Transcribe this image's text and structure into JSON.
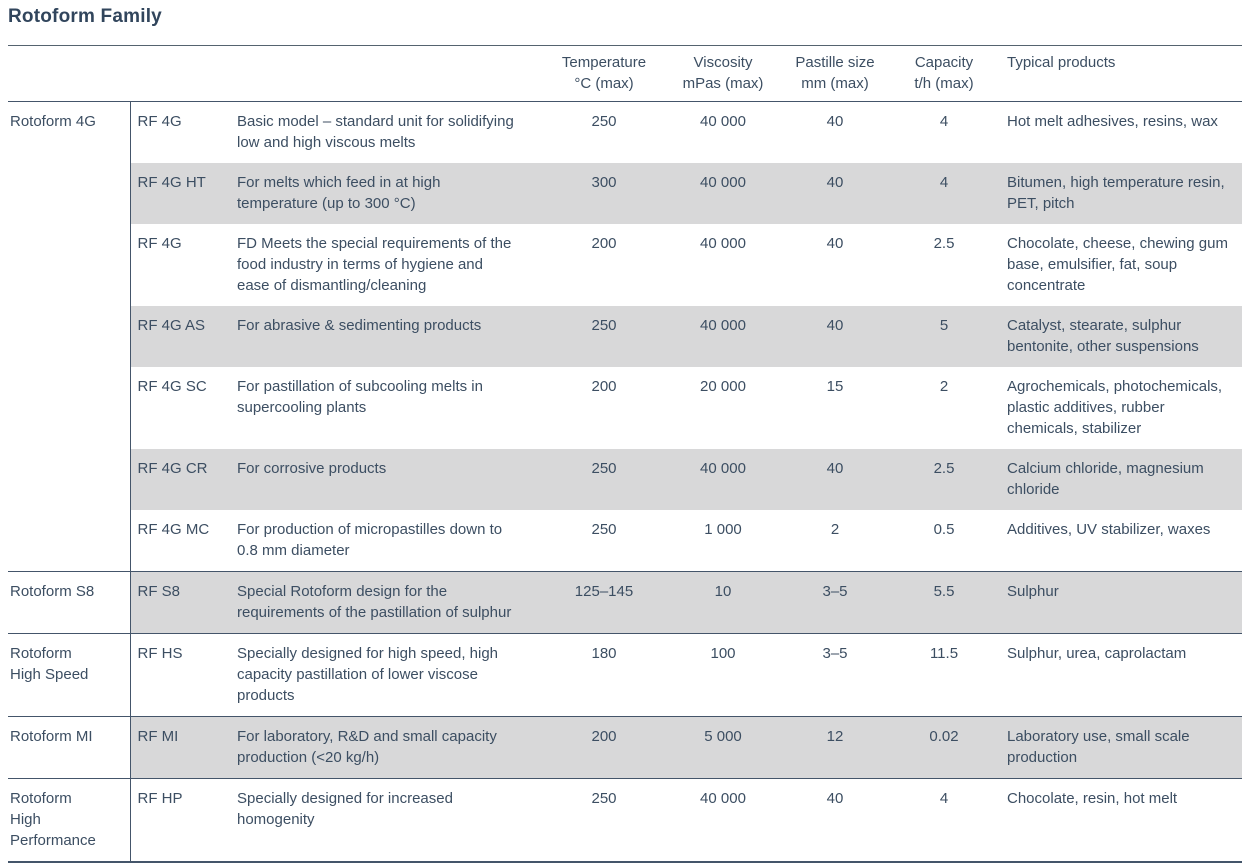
{
  "title": "Rotoform Family",
  "colors": {
    "text": "#3c4e62",
    "title": "#31455c",
    "row_shade": "#d8d8d9",
    "rule": "#44556a"
  },
  "table": {
    "headers": [
      {
        "label": "Temperature",
        "sub": "°C (max)"
      },
      {
        "label": "Viscosity",
        "sub": "mPas (max)"
      },
      {
        "label": "Pastille size",
        "sub": "mm (max)"
      },
      {
        "label": "Capacity",
        "sub": "t/h (max)"
      },
      {
        "label": "Typical products",
        "sub": ""
      }
    ],
    "groups": [
      {
        "name": "Rotoform 4G",
        "rows": [
          {
            "code": "RF 4G",
            "description": "Basic model – standard unit for solidifying low and high viscous melts",
            "temperature": "250",
            "viscosity": "40 000",
            "pastille": "40",
            "capacity": "4",
            "products": "Hot melt adhesives, resins, wax"
          },
          {
            "code": "RF 4G HT",
            "description": "For melts which feed in at high temperature (up to 300 °C)",
            "temperature": "300",
            "viscosity": "40 000",
            "pastille": "40",
            "capacity": "4",
            "products": "Bitumen, high temperature resin, PET, pitch"
          },
          {
            "code": "RF 4G",
            "description": "FD Meets the special requirements of the food industry in terms of hygiene and ease of dismantling/cleaning",
            "temperature": "200",
            "viscosity": "40 000",
            "pastille": "40",
            "capacity": "2.5",
            "products": "Chocolate, cheese, chewing gum base, emulsifier, fat, soup concentrate"
          },
          {
            "code": "RF 4G AS",
            "description": "For abrasive & sedimenting products",
            "temperature": "250",
            "viscosity": "40 000",
            "pastille": "40",
            "capacity": "5",
            "products": "Catalyst, stearate, sulphur bentonite, other suspensions"
          },
          {
            "code": "RF 4G SC",
            "description": "For pastillation of subcooling melts in supercooling plants",
            "temperature": "200",
            "viscosity": "20 000",
            "pastille": "15",
            "capacity": "2",
            "products": "Agrochemicals, photochemicals, plastic additives, rubber chemicals, stabilizer"
          },
          {
            "code": "RF 4G CR",
            "description": "For corrosive products",
            "temperature": "250",
            "viscosity": "40 000",
            "pastille": "40",
            "capacity": "2.5",
            "products": "Calcium chloride, magnesium chloride"
          },
          {
            "code": "RF 4G MC",
            "description": "For production of micropastilles down to 0.8 mm diameter",
            "temperature": "250",
            "viscosity": "1 000",
            "pastille": "2",
            "capacity": "0.5",
            "products": "Additives, UV stabilizer, waxes"
          }
        ]
      },
      {
        "name": "Rotoform S8",
        "rows": [
          {
            "code": "RF S8",
            "description": "Special Rotoform design for the requirements of the pastillation of sulphur",
            "temperature": "125–145",
            "viscosity": "10",
            "pastille": "3–5",
            "capacity": "5.5",
            "products": "Sulphur"
          }
        ]
      },
      {
        "name": "Rotoform High Speed",
        "rows": [
          {
            "code": "RF HS",
            "description": "Specially designed for high speed, high capacity pastillation of lower viscose products",
            "temperature": "180",
            "viscosity": "100",
            "pastille": "3–5",
            "capacity": "11.5",
            "products": "Sulphur, urea, caprolactam"
          }
        ]
      },
      {
        "name": "Rotoform MI",
        "rows": [
          {
            "code": "RF MI",
            "description": "For laboratory, R&D and small capacity production (<20 kg/h)",
            "temperature": "200",
            "viscosity": "5 000",
            "pastille": "12",
            "capacity": "0.02",
            "products": "Laboratory use, small scale production"
          }
        ]
      },
      {
        "name": "Rotoform High Performance",
        "rows": [
          {
            "code": "RF HP",
            "description": "Specially designed for increased homogenity",
            "temperature": "250",
            "viscosity": "40 000",
            "pastille": "40",
            "capacity": "4",
            "products": "Chocolate, resin, hot melt"
          }
        ]
      }
    ]
  }
}
